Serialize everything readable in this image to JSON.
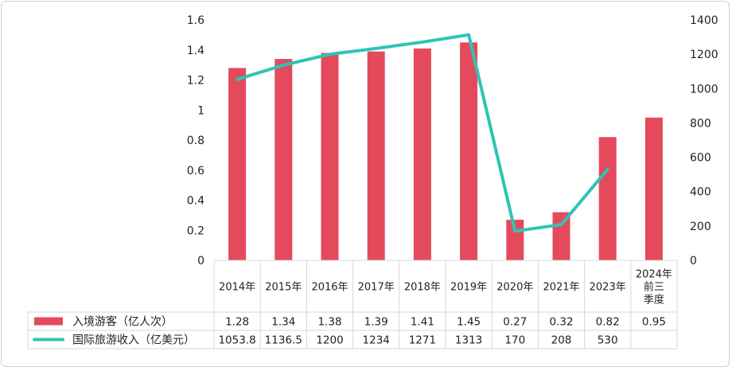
{
  "chart_data": {
    "type": "bar+line",
    "categories": [
      "2014年",
      "2015年",
      "2016年",
      "2017年",
      "2018年",
      "2019年",
      "2020年",
      "2021年",
      "2023年",
      "2024年前三季度"
    ],
    "category_lines": [
      [
        "2014年"
      ],
      [
        "2015年"
      ],
      [
        "2016年"
      ],
      [
        "2017年"
      ],
      [
        "2018年"
      ],
      [
        "2019年"
      ],
      [
        "2020年"
      ],
      [
        "2021年"
      ],
      [
        "2023年"
      ],
      [
        "2024年",
        "前三",
        "季度"
      ]
    ],
    "series": [
      {
        "name": "入境游客（亿人次）",
        "type": "bar",
        "axis": "left",
        "color": "#E44A5C",
        "values": [
          1.28,
          1.34,
          1.38,
          1.39,
          1.41,
          1.45,
          0.27,
          0.32,
          0.82,
          0.95
        ],
        "labels": [
          "1.28",
          "1.34",
          "1.38",
          "1.39",
          "1.41",
          "1.45",
          "0.27",
          "0.32",
          "0.82",
          "0.95"
        ]
      },
      {
        "name": "国际旅游收入（亿美元）",
        "type": "line",
        "axis": "right",
        "color": "#2EC4B6",
        "values": [
          1053.8,
          1136.5,
          1200,
          1234,
          1271,
          1313,
          170,
          208,
          530,
          null
        ],
        "labels": [
          "1053.8",
          "1136.5",
          "1200",
          "1234",
          "1271",
          "1313",
          "170",
          "208",
          "530",
          ""
        ]
      }
    ],
    "left_axis": {
      "min": 0,
      "max": 1.6,
      "ticks": [
        "0",
        "0.2",
        "0.4",
        "0.6",
        "0.8",
        "1",
        "1.2",
        "1.4",
        "1.6"
      ]
    },
    "right_axis": {
      "min": 0,
      "max": 1400,
      "ticks": [
        "0",
        "200",
        "400",
        "600",
        "800",
        "1000",
        "1200",
        "1400"
      ]
    },
    "grid": false,
    "legend": "data-table"
  }
}
